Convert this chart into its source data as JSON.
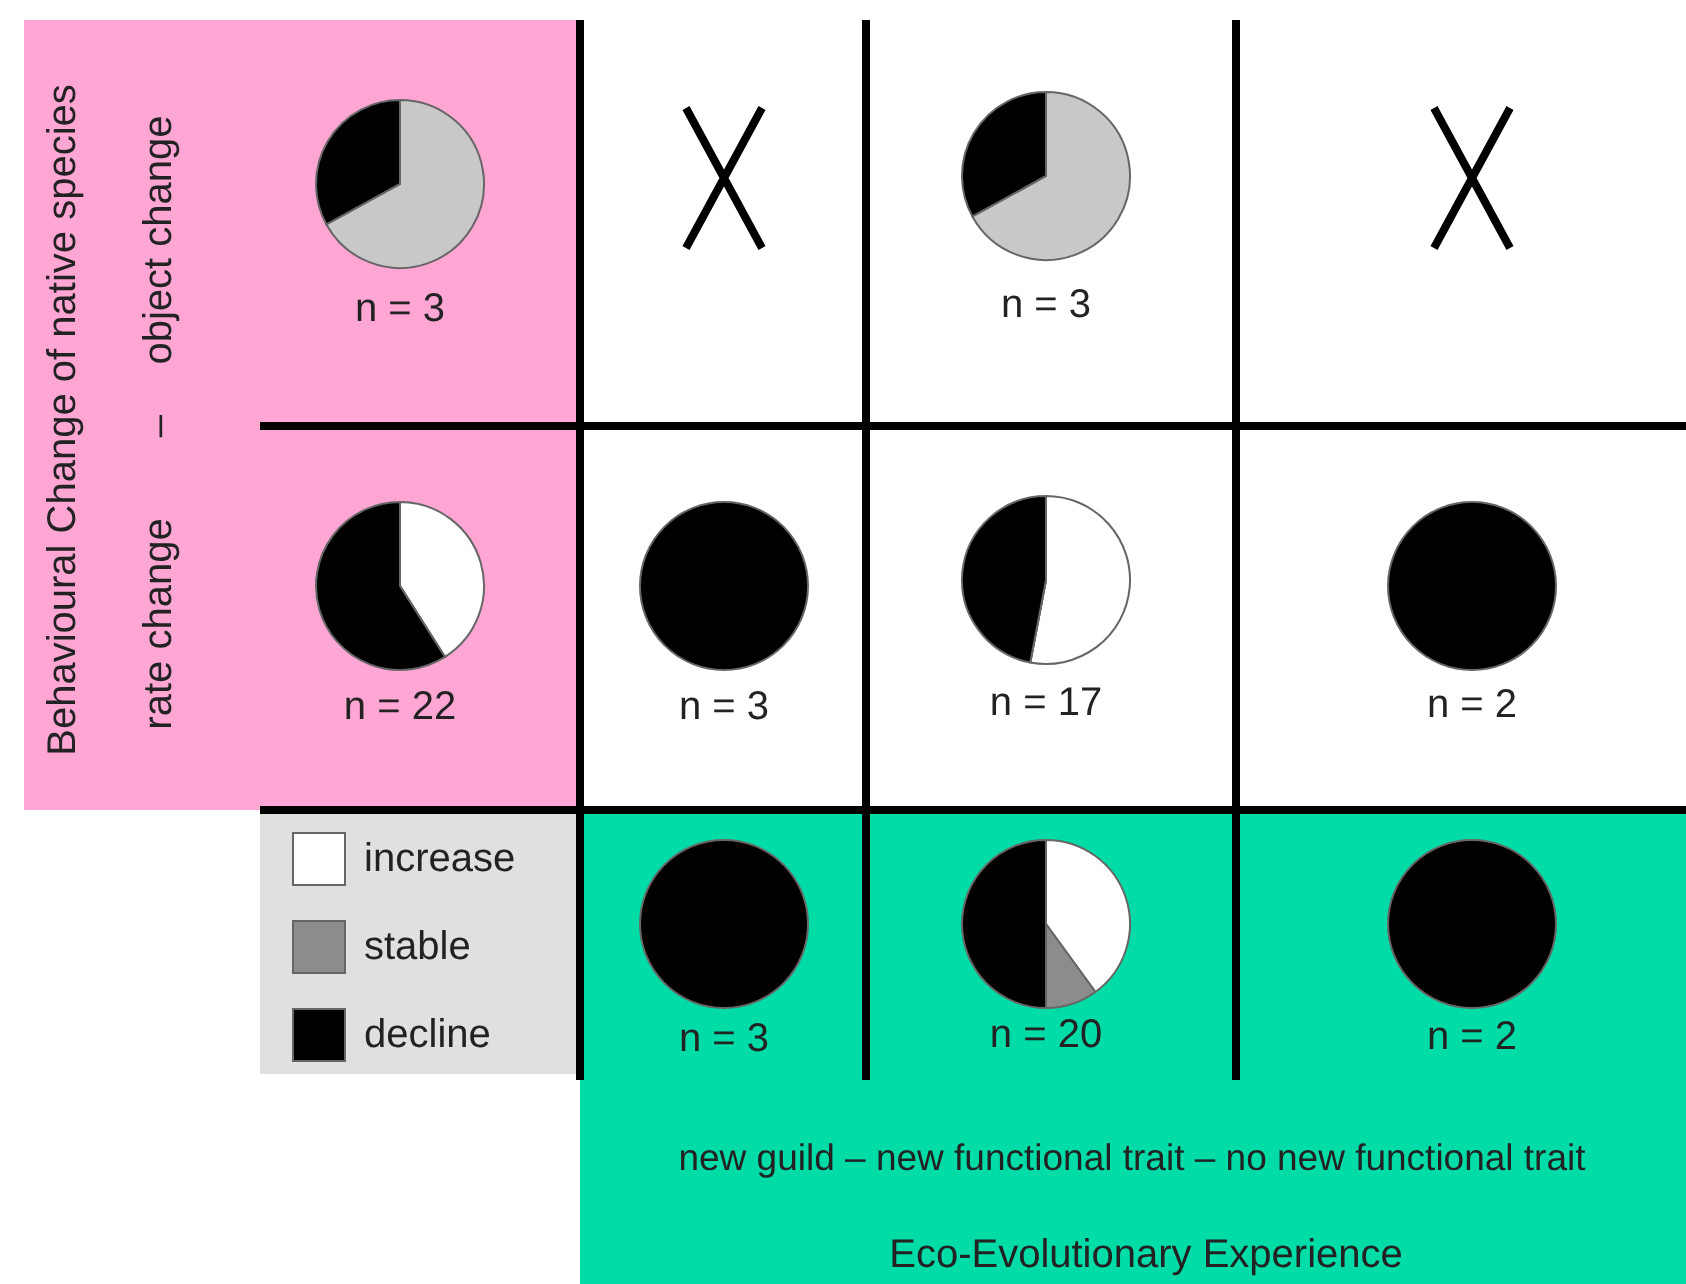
{
  "chart_data": [
    {
      "type": "pie",
      "categories": [
        null,
        null,
        null
      ],
      "values": [
        0,
        67,
        33
      ],
      "colors": [
        "#ffffff",
        "#c8c8c8",
        "#000000"
      ],
      "annotations": [
        "n = 3"
      ]
    },
    {
      "type": "pie",
      "categories": [
        null,
        null,
        null
      ],
      "values": [
        0,
        67,
        33
      ],
      "colors": [
        "#ffffff",
        "#c8c8c8",
        "#000000"
      ],
      "annotations": [
        "n = 3"
      ]
    },
    {
      "type": "pie",
      "categories": [
        null,
        null,
        null
      ],
      "values": [
        41,
        0,
        59
      ],
      "colors": [
        "#ffffff",
        "#8c8c8c",
        "#000000"
      ],
      "annotations": [
        "n = 22"
      ]
    },
    {
      "type": "pie",
      "categories": [
        null,
        null,
        null
      ],
      "values": [
        0,
        0,
        100
      ],
      "colors": [
        "#ffffff",
        "#8c8c8c",
        "#000000"
      ],
      "annotations": [
        "n = 3"
      ]
    },
    {
      "type": "pie",
      "categories": [
        null,
        null,
        null
      ],
      "values": [
        53,
        0,
        47
      ],
      "colors": [
        "#ffffff",
        "#8c8c8c",
        "#000000"
      ],
      "annotations": [
        "n = 17"
      ]
    },
    {
      "type": "pie",
      "categories": [
        null,
        null,
        null
      ],
      "values": [
        0,
        0,
        100
      ],
      "colors": [
        "#ffffff",
        "#8c8c8c",
        "#000000"
      ],
      "annotations": [
        "n = 2"
      ]
    },
    {
      "type": "pie",
      "categories": [
        "increase",
        "stable",
        "decline"
      ],
      "values": [
        0,
        0,
        100
      ],
      "colors": [
        "#ffffff",
        "#8c8c8c",
        "#000000"
      ],
      "annotations": [
        "n = 3"
      ],
      "legend": "left"
    },
    {
      "type": "pie",
      "categories": [
        null,
        null,
        null
      ],
      "values": [
        40,
        10,
        50
      ],
      "colors": [
        "#ffffff",
        "#8c8c8c",
        "#000000"
      ],
      "annotations": [
        "n = 20"
      ]
    },
    {
      "type": "pie",
      "categories": [
        null,
        null,
        null
      ],
      "values": [
        0,
        0,
        100
      ],
      "colors": [
        "#ffffff",
        "#8c8c8c",
        "#000000"
      ],
      "annotations": [
        "n = 2"
      ]
    },
    {
      "type": "other",
      "ylabel": "Behavioural Change of native species",
      "xlabel": "Eco-Evolutionary Experience",
      "annotations": [
        "object change",
        "–",
        "rate change",
        "new guild – new functional trait – no new functional trait"
      ]
    }
  ]
}
